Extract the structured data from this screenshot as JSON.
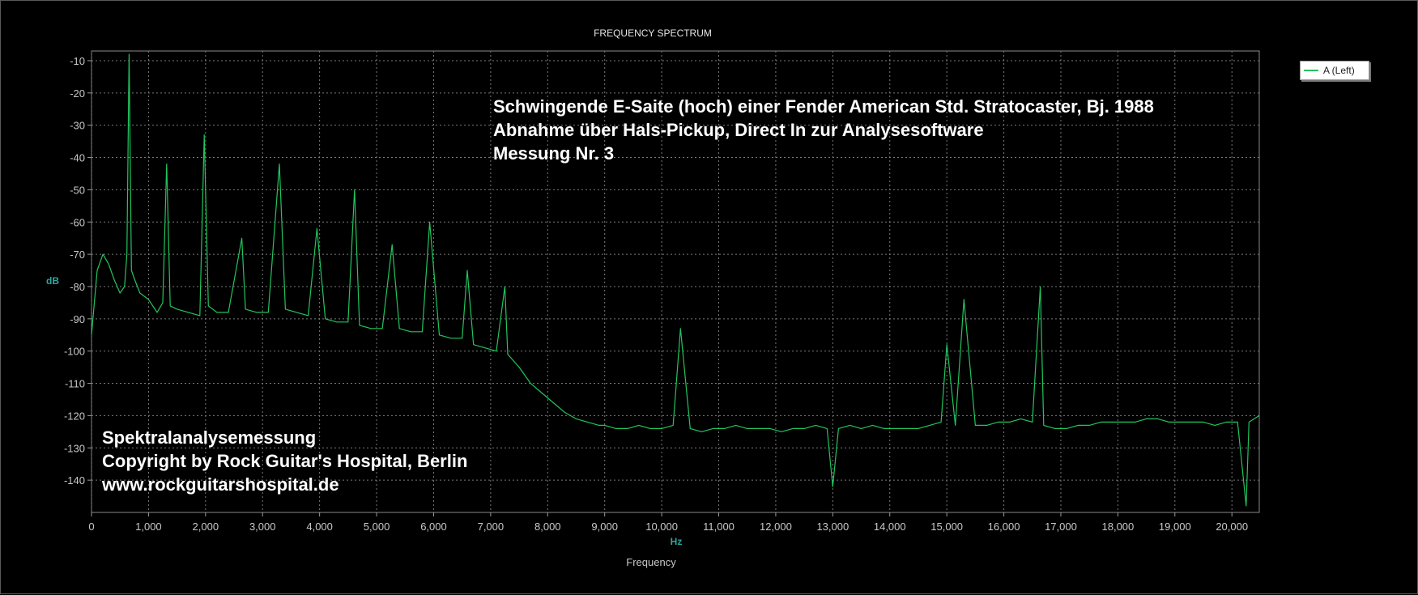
{
  "chart_data": {
    "type": "line",
    "title": "FREQUENCY SPECTRUM",
    "xlabel": "Frequency",
    "xunit": "Hz",
    "ylabel": "dB",
    "xlim": [
      0,
      20480
    ],
    "ylim": [
      -150,
      -7
    ],
    "xticks": [
      0,
      1000,
      2000,
      3000,
      4000,
      5000,
      6000,
      7000,
      8000,
      9000,
      10000,
      11000,
      12000,
      13000,
      14000,
      15000,
      16000,
      17000,
      18000,
      19000,
      20000
    ],
    "xtick_labels": [
      "0",
      "1,000",
      "2,000",
      "3,000",
      "4,000",
      "5,000",
      "6,000",
      "7,000",
      "8,000",
      "9,000",
      "10,000",
      "11,000",
      "12,000",
      "13,000",
      "14,000",
      "15,000",
      "16,000",
      "17,000",
      "18,000",
      "19,000",
      "20,000"
    ],
    "yticks": [
      -10,
      -20,
      -30,
      -40,
      -50,
      -60,
      -70,
      -80,
      -90,
      -100,
      -110,
      -120,
      -130,
      -140
    ],
    "ytick_labels": [
      "-10",
      "-20",
      "-30",
      "-40",
      "-50",
      "-60",
      "-70",
      "-80",
      "-90",
      "-100",
      "-110",
      "-120",
      "-130",
      "-140"
    ],
    "grid": true,
    "legend_position": "top-right",
    "series": [
      {
        "name": "A (Left)",
        "color": "#22c55e",
        "x": [
          0,
          100,
          200,
          300,
          400,
          500,
          580,
          620,
          659,
          700,
          760,
          850,
          1000,
          1150,
          1250,
          1318,
          1380,
          1500,
          1700,
          1900,
          1977,
          2050,
          2200,
          2400,
          2636,
          2700,
          2900,
          3100,
          3295,
          3400,
          3600,
          3800,
          3954,
          4100,
          4300,
          4500,
          4613,
          4700,
          4900,
          5100,
          5272,
          5400,
          5600,
          5800,
          5931,
          6100,
          6300,
          6500,
          6590,
          6700,
          6900,
          7100,
          7249,
          7300,
          7500,
          7700,
          7900,
          8100,
          8300,
          8500,
          8700,
          8900,
          9000,
          9200,
          9400,
          9600,
          9800,
          10000,
          10200,
          10330,
          10500,
          10700,
          10900,
          11100,
          11300,
          11500,
          11700,
          11900,
          12100,
          12300,
          12500,
          12700,
          12900,
          13000,
          13100,
          13300,
          13500,
          13700,
          13900,
          14100,
          14300,
          14500,
          14700,
          14900,
          15000,
          15150,
          15300,
          15500,
          15700,
          15900,
          16100,
          16300,
          16500,
          16640,
          16700,
          16900,
          17100,
          17300,
          17500,
          17700,
          17900,
          18100,
          18300,
          18500,
          18700,
          18900,
          19100,
          19300,
          19500,
          19700,
          19900,
          20100,
          20250,
          20300,
          20480
        ],
        "y": [
          -95,
          -75,
          -70,
          -73,
          -78,
          -82,
          -80,
          -70,
          -8,
          -75,
          -78,
          -82,
          -84,
          -88,
          -85,
          -42,
          -86,
          -87,
          -88,
          -89,
          -33,
          -86,
          -88,
          -88,
          -65,
          -87,
          -88,
          -88,
          -42,
          -87,
          -88,
          -89,
          -62,
          -90,
          -91,
          -91,
          -50,
          -92,
          -93,
          -93,
          -67,
          -93,
          -94,
          -94,
          -60,
          -95,
          -96,
          -96,
          -75,
          -98,
          -99,
          -100,
          -80,
          -101,
          -105,
          -110,
          -113,
          -116,
          -119,
          -121,
          -122,
          -123,
          -123,
          -124,
          -124,
          -123,
          -124,
          -124,
          -123,
          -93,
          -124,
          -125,
          -124,
          -124,
          -123,
          -124,
          -124,
          -124,
          -125,
          -124,
          -124,
          -123,
          -124,
          -142,
          -124,
          -123,
          -124,
          -123,
          -124,
          -124,
          -124,
          -124,
          -123,
          -122,
          -98,
          -123,
          -84,
          -123,
          -123,
          -122,
          -122,
          -121,
          -122,
          -80,
          -123,
          -124,
          -124,
          -123,
          -123,
          -122,
          -122,
          -122,
          -122,
          -121,
          -121,
          -122,
          -122,
          -122,
          -122,
          -123,
          -122,
          -122,
          -148,
          -122,
          -120
        ]
      }
    ],
    "annotations": {
      "top": [
        "Schwingende E-Saite (hoch) einer Fender American Std. Stratocaster, Bj. 1988",
        "Abnahme über Hals-Pickup, Direct In zur Analysesoftware",
        "Messung Nr. 3"
      ],
      "bottom": [
        "Spektralanalysemessung",
        "Copyright by Rock Guitar's Hospital, Berlin",
        "www.rockguitarshospital.de"
      ]
    }
  }
}
